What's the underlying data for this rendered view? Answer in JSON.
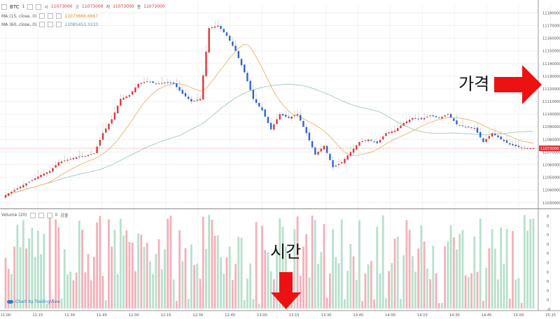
{
  "header": {
    "symbol": "BTC",
    "interval": "1",
    "open_label": "시",
    "open_value": "11073000",
    "high_label": "고",
    "high_value": "11073000",
    "low_label": "저",
    "low_value": "11073000",
    "close_label": "종",
    "close_value": "11073000",
    "ma15_label": "MA (15, close, 0)",
    "ma15_value": "11073666.6667",
    "ma60_label": "MA (60, close, 0)",
    "ma60_value": "11085453.3333",
    "volume_label": "Volume (20)",
    "volume_value": "0",
    "volume_extra": "갑출"
  },
  "annotations": {
    "price_label": "가격",
    "time_label": "시간"
  },
  "watermark": "Chart by TradingView",
  "colors": {
    "up": "#e0343a",
    "down": "#2c62d8",
    "ma15": "#e9b267",
    "ma60": "#9fc8b8",
    "vol_up": "#b7e0cb",
    "vol_down": "#f4b0b8",
    "current_line": "#e0343a",
    "arrow": "#ee1111"
  },
  "chart_data": {
    "type": "candlestick",
    "price_axis": {
      "ticks": [
        "11030000",
        "11040000",
        "11050000",
        "11060000",
        "11070000",
        "11080000",
        "11090000",
        "11100000",
        "11110000",
        "11120000",
        "11130000",
        "11140000",
        "11150000",
        "11160000",
        "11170000",
        "11180000"
      ],
      "ylim": [
        11026000,
        11188000
      ],
      "current": "11073000"
    },
    "time_axis": {
      "ticks": [
        "11:00",
        "11:15",
        "11:30",
        "11:45",
        "12:00",
        "12:15",
        "12:30",
        "12:45",
        "13:00",
        "13:15",
        "13:30",
        "13:45",
        "14:00",
        "14:15",
        "14:30",
        "14:45",
        "15:00",
        "15:15"
      ]
    },
    "volume_axis": {
      "ticks": [
        "0",
        "0",
        "0",
        "0",
        "0",
        "0",
        "0",
        "0",
        "0",
        "0",
        "-0"
      ]
    },
    "anchors": [
      [
        0,
        11036000
      ],
      [
        3,
        11040000
      ],
      [
        6,
        11044000
      ],
      [
        9,
        11048000
      ],
      [
        12,
        11052000
      ],
      [
        15,
        11055000
      ],
      [
        18,
        11062000
      ],
      [
        21,
        11064000
      ],
      [
        24,
        11066000
      ],
      [
        27,
        11067000
      ],
      [
        30,
        11069000
      ],
      [
        33,
        11085000
      ],
      [
        36,
        11096000
      ],
      [
        39,
        11112000
      ],
      [
        42,
        11115000
      ],
      [
        45,
        11124000
      ],
      [
        48,
        11126000
      ],
      [
        51,
        11124000
      ],
      [
        54,
        11125000
      ],
      [
        57,
        11124000
      ],
      [
        60,
        11116000
      ],
      [
        63,
        11110000
      ],
      [
        66,
        11112000
      ],
      [
        69,
        11168000
      ],
      [
        72,
        11170000
      ],
      [
        75,
        11162000
      ],
      [
        78,
        11150000
      ],
      [
        81,
        11133000
      ],
      [
        84,
        11112000
      ],
      [
        87,
        11103000
      ],
      [
        90,
        11088000
      ],
      [
        93,
        11100000
      ],
      [
        96,
        11097000
      ],
      [
        99,
        11100000
      ],
      [
        102,
        11085000
      ],
      [
        105,
        11068000
      ],
      [
        108,
        11075000
      ],
      [
        111,
        11058000
      ],
      [
        114,
        11062000
      ],
      [
        117,
        11070000
      ],
      [
        120,
        11078000
      ],
      [
        123,
        11080000
      ],
      [
        126,
        11077000
      ],
      [
        129,
        11085000
      ],
      [
        132,
        11087000
      ],
      [
        135,
        11093000
      ],
      [
        138,
        11097000
      ],
      [
        141,
        11096000
      ],
      [
        144,
        11099000
      ],
      [
        147,
        11097000
      ],
      [
        150,
        11100000
      ],
      [
        153,
        11092000
      ],
      [
        156,
        11090000
      ],
      [
        159,
        11089000
      ],
      [
        162,
        11078000
      ],
      [
        165,
        11085000
      ],
      [
        168,
        11080000
      ],
      [
        171,
        11076000
      ],
      [
        174,
        11074000
      ],
      [
        177,
        11073000
      ],
      [
        179,
        11073000
      ]
    ]
  }
}
